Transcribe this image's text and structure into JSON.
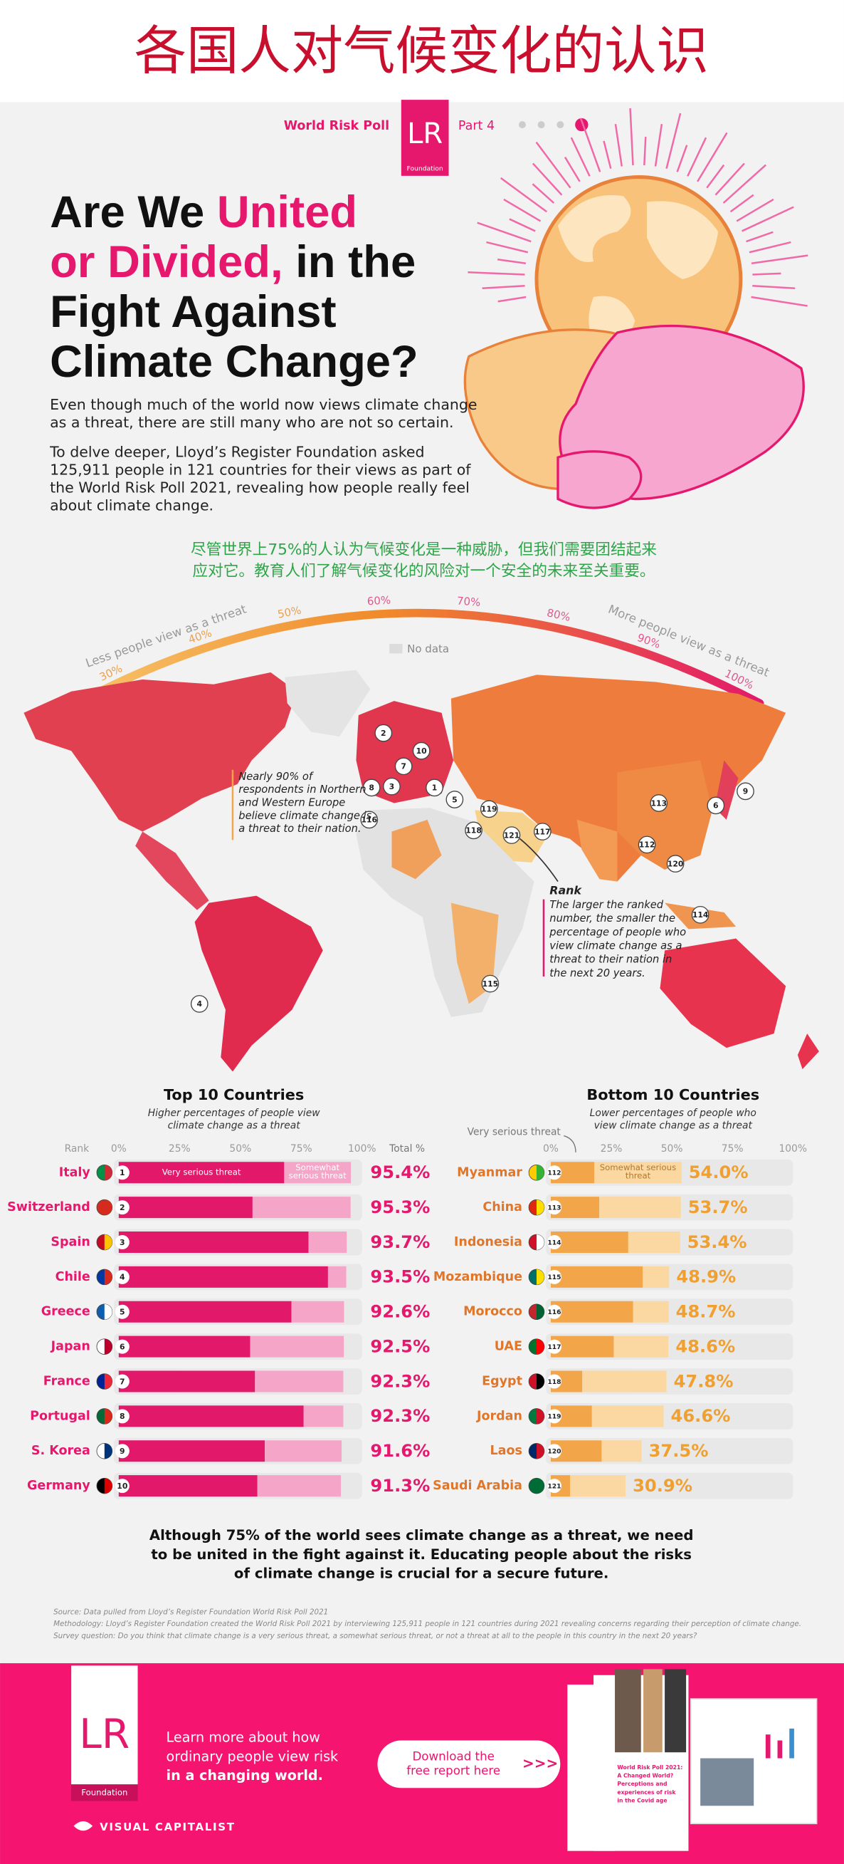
{
  "title_cn": "各国人对气候变化的认识",
  "header": {
    "poll": "World Risk Poll",
    "logo": "LR",
    "logo_sub": "Foundation",
    "part": "Part 4"
  },
  "headline": {
    "line1a": "Are We ",
    "line1b": "United",
    "line2a": "or Divided,",
    "line2b": " in the",
    "line3": "Fight Against",
    "line4": "Climate Change?"
  },
  "intro": {
    "p1": [
      "Even though much of the world now views climate change",
      "as a threat, there are still many who are not so certain."
    ],
    "p2": [
      "To delve deeper, Lloyd’s Register Foundation asked",
      "125,911 people in 121 countries for their views as part of",
      "the World Risk Poll 2021, revealing how people really feel",
      "about climate change."
    ]
  },
  "summary_cn": [
    "尽管世界上75%的人认为气候变化是一种威胁，但我们需要团结起来",
    "应对它。教育人们了解气候变化的风险对一个安全的未来至关重要。"
  ],
  "map": {
    "scale": {
      "lim": [
        30,
        100
      ],
      "ticks": [
        {
          "value": 30,
          "label": "30%"
        },
        {
          "value": 40,
          "label": "40%"
        },
        {
          "value": 50,
          "label": "50%"
        },
        {
          "value": 60,
          "label": "60%"
        },
        {
          "value": 70,
          "label": "70%"
        },
        {
          "value": 80,
          "label": "80%"
        },
        {
          "value": 90,
          "label": "90%"
        },
        {
          "value": 100,
          "label": "100%"
        }
      ]
    },
    "less_label": "Less people view as a threat",
    "more_label": "More people view as a threat",
    "no_data": "No data",
    "markers": [
      2,
      10,
      7,
      8,
      3,
      1,
      5,
      119,
      118,
      121,
      117,
      116,
      113,
      9,
      6,
      112,
      120,
      114,
      115,
      4
    ],
    "europe_note": [
      "Nearly 90% of",
      "respondents in Northern",
      "and Western Europe",
      "believe climate change is",
      "a threat to their nation."
    ],
    "rank_note_title": "Rank",
    "rank_note": [
      "The larger the ranked",
      "number, the smaller the",
      "percentage of people who",
      "view climate change as a",
      "threat to their nation in",
      "the next 20 years."
    ]
  },
  "chart_data": [
    {
      "type": "bar",
      "orientation": "horizontal",
      "stacked": true,
      "title": "Top 10 Countries",
      "subtitle": [
        "Higher percentages of people view",
        "climate change as a threat"
      ],
      "rank_label": "Rank",
      "total_label": "Total %",
      "categories": [
        "Italy",
        "Switzerland",
        "Spain",
        "Chile",
        "Greece",
        "Japan",
        "France",
        "Portugal",
        "S. Korea",
        "Germany"
      ],
      "ranks": [
        1,
        2,
        3,
        4,
        5,
        6,
        7,
        8,
        9,
        10
      ],
      "series": [
        {
          "name": "Very serious threat",
          "color": "#e2196a",
          "values": [
            68,
            55,
            78,
            86,
            71,
            54,
            56,
            76,
            60,
            57
          ]
        },
        {
          "name": "Somewhat serious threat",
          "color": "#f5a6c8",
          "values": [
            27.4,
            40.3,
            15.7,
            7.5,
            21.6,
            38.5,
            36.3,
            16.3,
            31.6,
            34.3
          ]
        }
      ],
      "totals": [
        "95.4%",
        "95.3%",
        "93.7%",
        "93.5%",
        "92.6%",
        "92.5%",
        "92.3%",
        "92.3%",
        "91.6%",
        "91.3%"
      ],
      "xlim": [
        0,
        100
      ],
      "xticks": [
        {
          "value": 0,
          "label": "0%"
        },
        {
          "value": 25,
          "label": "25%"
        },
        {
          "value": 50,
          "label": "50%"
        },
        {
          "value": 75,
          "label": "75%"
        },
        {
          "value": 100,
          "label": "100%"
        }
      ]
    },
    {
      "type": "bar",
      "orientation": "horizontal",
      "stacked": true,
      "title": "Bottom 10 Countries",
      "subtitle": [
        "Lower percentages of people who",
        "view climate change as a threat"
      ],
      "categories": [
        "Myanmar",
        "China",
        "Indonesia",
        "Mozambique",
        "Morocco",
        "UAE",
        "Egypt",
        "Jordan",
        "Laos",
        "Saudi Arabia"
      ],
      "ranks": [
        112,
        113,
        114,
        115,
        116,
        117,
        118,
        119,
        120,
        121
      ],
      "series": [
        {
          "name": "Very serious threat",
          "color": "#f2a649",
          "values": [
            18,
            20,
            32,
            38,
            34,
            26,
            13,
            17,
            21,
            8
          ]
        },
        {
          "name": "Somewhat serious threat",
          "color": "#fbd7a1",
          "values": [
            36,
            33.7,
            21.4,
            10.9,
            14.7,
            22.6,
            34.8,
            29.6,
            16.5,
            22.9
          ]
        }
      ],
      "totals": [
        "54.0%",
        "53.7%",
        "53.4%",
        "48.9%",
        "48.7%",
        "48.6%",
        "47.8%",
        "46.6%",
        "37.5%",
        "30.9%"
      ],
      "xlim": [
        0,
        100
      ],
      "xticks": [
        {
          "value": 0,
          "label": "0%"
        },
        {
          "value": 25,
          "label": "25%"
        },
        {
          "value": 50,
          "label": "50%"
        },
        {
          "value": 75,
          "label": "75%"
        },
        {
          "value": 100,
          "label": "100%"
        }
      ]
    }
  ],
  "conclusion": [
    "Although 75% of the world sees climate change as a threat, we need",
    "to be united in the fight against it. Educating people about the risks",
    "of climate change is crucial for a secure future."
  ],
  "source": [
    "Source: Data pulled from Lloyd’s Register Foundation World Risk Poll 2021",
    "Methodology: Lloyd’s Register Foundation created the World Risk Poll 2021 by interviewing 125,911 people in 121 countries during 2021 revealing concerns regarding their perception of climate change.",
    "Survey question: Do you think that climate change is a very serious threat, a somewhat serious threat, or not a threat at all to the people in this country in the next 20 years?"
  ],
  "footer": {
    "logo": "LR",
    "logo_sub": "Foundation",
    "learn": [
      "Learn more about how",
      "ordinary people view risk"
    ],
    "learn_bold": "in a changing world.",
    "button": [
      "Download the",
      "free report here"
    ],
    "arrows": ">>>",
    "report": [
      "World Risk Poll 2021:",
      "A Changed World?",
      "Perceptions and",
      "experiences of risk",
      "in the Covid age"
    ],
    "brand": "VISUAL CAPITALIST"
  }
}
